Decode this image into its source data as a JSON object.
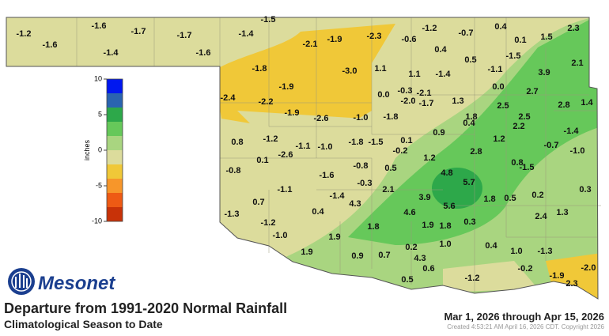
{
  "header": {
    "logo_text": "Mesonet",
    "title": "Departure from 1991-2020 Normal Rainfall",
    "subtitle": "Climatological Season to Date",
    "date_range": "Mar 1, 2026 through Apr 15, 2026",
    "credit": "Created 4:53:21 AM April 16, 2026 CDT. Copyright 2026"
  },
  "legend": {
    "title": "inches",
    "ticks": [
      10,
      5,
      0,
      -5,
      -10
    ],
    "colors": [
      "#0018f0",
      "#2a64b0",
      "#2da84a",
      "#66c85a",
      "#a9d580",
      "#dcdc9c",
      "#f0c838",
      "#f7962a",
      "#ee5a14",
      "#c83208"
    ]
  },
  "stations": [
    "-1.5",
    "-1.2",
    "-1.6",
    "-1.6",
    "-1.7",
    "-1.4",
    "-1.7",
    "-1.6",
    "-1.4",
    "-2.1",
    "-1.9",
    "-2.3",
    "-0.6",
    "-1.2",
    "-0.7",
    "0.4",
    "2.3",
    "0.1",
    "1.5",
    "0.4",
    "0.5",
    "-1.5",
    "2.1",
    "-1.8",
    "-3.0",
    "1.1",
    "1.1",
    "-1.4",
    "-1.1",
    "3.9",
    "-1.9",
    "0.0",
    "-0.3",
    "-2.1",
    "0.0",
    "2.7",
    "-2.4",
    "-2.2",
    "-2.0",
    "-1.7",
    "1.3",
    "2.5",
    "2.8",
    "1.4",
    "-1.9",
    "-2.6",
    "-1.0",
    "-1.8",
    "1.8",
    "2.5",
    "0.4",
    "2.2",
    "0.9",
    "-1.4",
    "0.8",
    "-1.2",
    "-1.1",
    "-1.0",
    "-1.8",
    "-1.5",
    "0.1",
    "-0.2",
    "1.2",
    "-0.7",
    "-1.0",
    "2.8",
    "0.1",
    "-2.6",
    "1.2",
    "-0.8",
    "-1.6",
    "-0.8",
    "0.5",
    "4.8",
    "0.8",
    "-1.5",
    "-0.3",
    "5.7",
    "-1.1",
    "-1.4",
    "2.1",
    "3.9",
    "1.8",
    "0.5",
    "0.2",
    "0.3",
    "0.7",
    "4.3",
    "5.6",
    "-1.3",
    "0.4",
    "4.6",
    "2.4",
    "1.3",
    "-1.2",
    "0.3",
    "1.8",
    "1.9",
    "1.8",
    "-1.0",
    "1.9",
    "0.4",
    "0.2",
    "1.0",
    "1.9",
    "0.9",
    "0.7",
    "4.3",
    "1.0",
    "-1.3",
    "-2.0",
    "0.6",
    "-0.2",
    "0.5",
    "-1.2",
    "-1.9",
    "2.3"
  ]
}
